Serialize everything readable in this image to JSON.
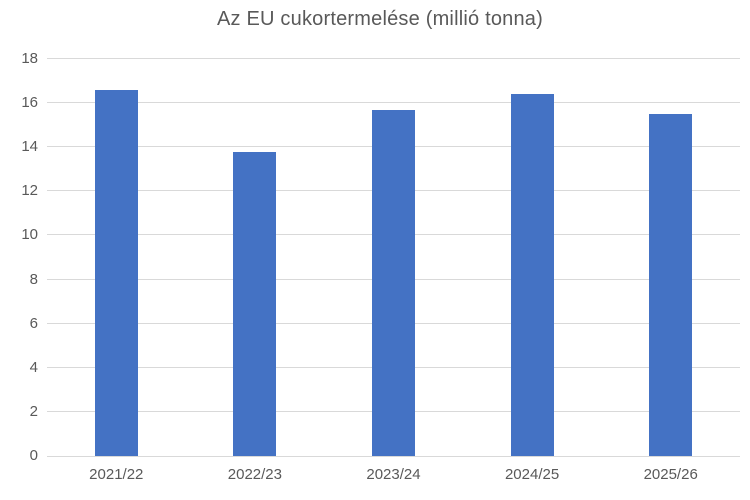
{
  "chart": {
    "title": "Az EU cukortermelése (millió tonna)"
  },
  "chart_data": {
    "type": "bar",
    "title": "Az EU cukortermelése (millió tonna)",
    "categories": [
      "2021/22",
      "2022/23",
      "2023/24",
      "2024/25",
      "2025/26"
    ],
    "values": [
      16.6,
      13.8,
      15.7,
      16.4,
      15.5
    ],
    "xlabel": "",
    "ylabel": "",
    "ylim": [
      0,
      18
    ],
    "ytick_step": 2,
    "grid": true,
    "legend": "none",
    "colors": {
      "bar": "#4472C4",
      "gridline": "#D9D9D9",
      "axis_line": "#D9D9D9",
      "tick_text": "#595959",
      "title_text": "#595959",
      "background": "#FFFFFF"
    }
  }
}
